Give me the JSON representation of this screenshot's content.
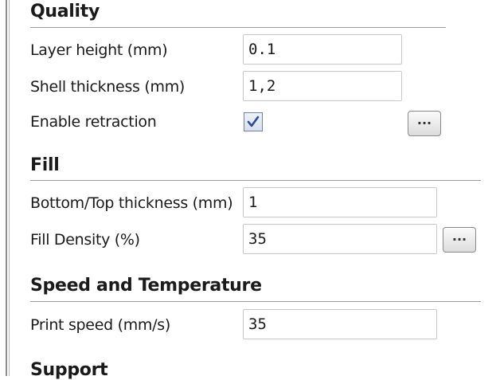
{
  "quality": {
    "title": "Quality",
    "layer_height_label": "Layer height (mm)",
    "layer_height_value": "0.1",
    "shell_thickness_label": "Shell thickness (mm)",
    "shell_thickness_value": "1,2",
    "enable_retraction_label": "Enable retraction",
    "enable_retraction_checked": true,
    "retraction_more_label": "..."
  },
  "fill": {
    "title": "Fill",
    "bottom_top_label": "Bottom/Top thickness (mm)",
    "bottom_top_value": "1",
    "fill_density_label": "Fill Density (%)",
    "fill_density_value": "35",
    "fill_more_label": "..."
  },
  "speed": {
    "title": "Speed and Temperature",
    "print_speed_label": "Print speed (mm/s)",
    "print_speed_value": "35"
  },
  "support": {
    "title": "Support"
  },
  "colors": {
    "checkmark": "#2b4a9a",
    "rule": "#9a9a9a"
  }
}
